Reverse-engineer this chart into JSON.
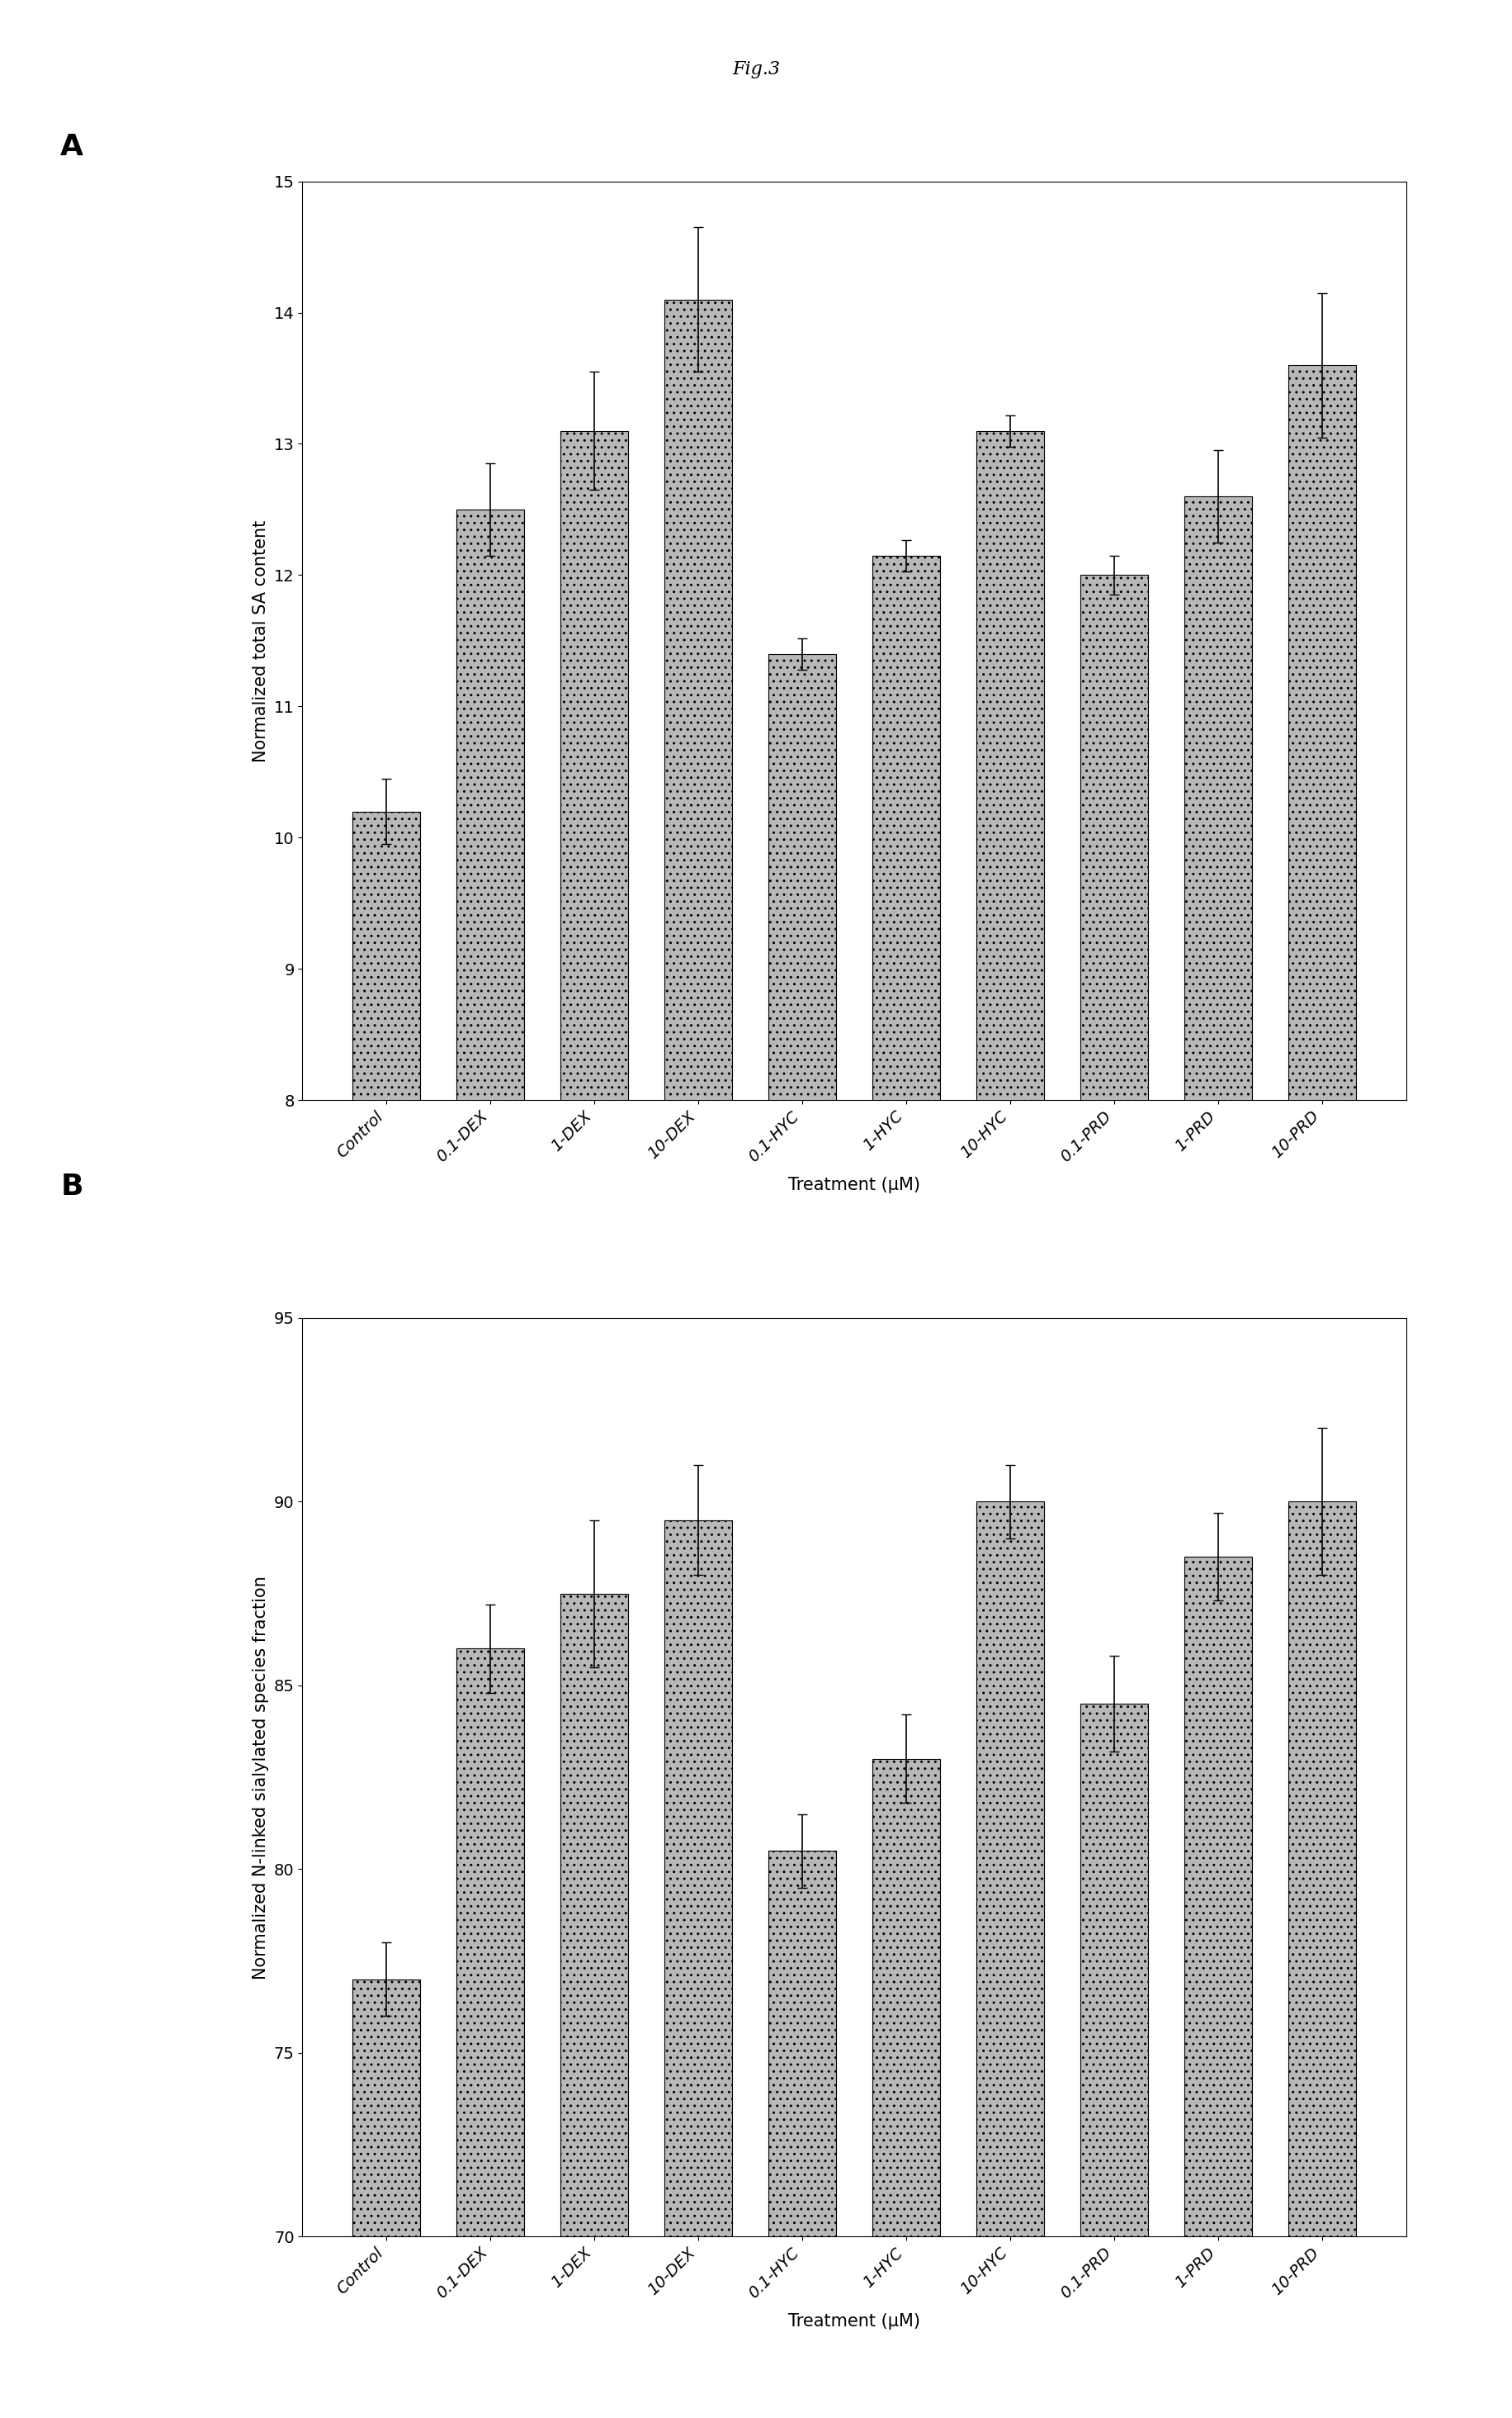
{
  "fig_title": "Fig.3",
  "panel_A": {
    "label": "A",
    "categories": [
      "Control",
      "0.1-DEX",
      "1-DEX",
      "10-DEX",
      "0.1-HYC",
      "1-HYC",
      "10-HYC",
      "0.1-PRD",
      "1-PRD",
      "10-PRD"
    ],
    "values": [
      10.2,
      12.5,
      13.1,
      14.1,
      11.4,
      12.15,
      13.1,
      12.0,
      12.6,
      13.6
    ],
    "errors": [
      0.25,
      0.35,
      0.45,
      0.55,
      0.12,
      0.12,
      0.12,
      0.15,
      0.35,
      0.55
    ],
    "ylabel": "Normalized total SA content",
    "xlabel": "Treatment (μM)",
    "ylim": [
      8,
      15
    ],
    "yticks": [
      8,
      9,
      10,
      11,
      12,
      13,
      14,
      15
    ],
    "bar_color": "#b8b8b8",
    "bar_edgecolor": "#000000",
    "hatch": ".."
  },
  "panel_B": {
    "label": "B",
    "categories": [
      "Control",
      "0.1-DEX",
      "1-DEX",
      "10-DEX",
      "0.1-HYC",
      "1-HYC",
      "10-HYC",
      "0.1-PRD",
      "1-PRD",
      "10-PRD"
    ],
    "values": [
      77.0,
      86.0,
      87.5,
      89.5,
      80.5,
      83.0,
      90.0,
      84.5,
      88.5,
      90.0
    ],
    "errors": [
      1.0,
      1.2,
      2.0,
      1.5,
      1.0,
      1.2,
      1.0,
      1.3,
      1.2,
      2.0
    ],
    "ylabel": "Normalized N-linked sialylated species fraction",
    "xlabel": "Treatment (μM)",
    "ylim": [
      70,
      95
    ],
    "yticks": [
      70,
      75,
      80,
      85,
      90,
      95
    ],
    "bar_color": "#b8b8b8",
    "bar_edgecolor": "#000000",
    "hatch": ".."
  },
  "background_color": "#ffffff",
  "tick_label_fontsize": 14,
  "axis_label_fontsize": 15,
  "panel_label_fontsize": 26,
  "fig_title_fontsize": 16
}
